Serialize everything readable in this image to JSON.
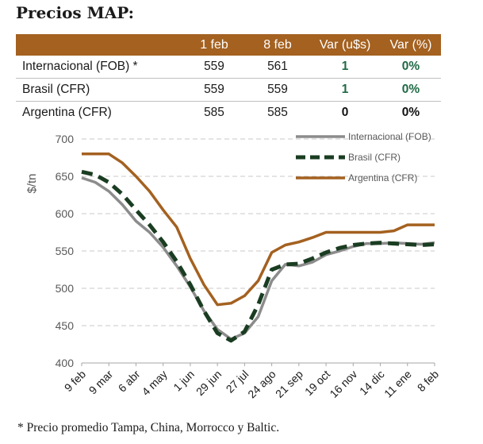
{
  "title": "Precios MAP:",
  "table": {
    "headers": [
      "",
      "1 feb",
      "8 feb",
      "Var (u$s)",
      "Var (%)"
    ],
    "rows": [
      {
        "name": "Internacional (FOB) *",
        "v1": "559",
        "v2": "561",
        "var_abs": "1",
        "var_pct": "0%",
        "color": "green"
      },
      {
        "name": "Brasil (CFR)",
        "v1": "559",
        "v2": "559",
        "var_abs": "1",
        "var_pct": "0%",
        "color": "green"
      },
      {
        "name": "Argentina (CFR)",
        "v1": "585",
        "v2": "585",
        "var_abs": "0",
        "var_pct": "0%",
        "color": "black"
      }
    ]
  },
  "footnote": "* Precio promedio Tampa, China, Morrocco y Baltic.",
  "chart_data": {
    "type": "line",
    "ylabel": "$/tn",
    "ylim": [
      400,
      700
    ],
    "yticks": [
      400,
      450,
      500,
      550,
      600,
      650,
      700
    ],
    "grid": true,
    "legend_position": "top-right",
    "x_tick_labels": [
      "9 feb",
      "9 mar",
      "6 abr",
      "4 may",
      "1 jun",
      "29 jun",
      "27 jul",
      "24 ago",
      "21 sep",
      "19 oct",
      "16 nov",
      "14 dic",
      "11 ene",
      "8 feb"
    ],
    "x": [
      0,
      0.5,
      1,
      1.5,
      2,
      2.5,
      3,
      3.5,
      4,
      4.5,
      5,
      5.5,
      6,
      6.5,
      7,
      7.5,
      8,
      8.5,
      9,
      9.5,
      10,
      10.5,
      11,
      11.5,
      12,
      12.5,
      13
    ],
    "series": [
      {
        "name": "Internacional (FOB)",
        "color": "#8c8c8c",
        "dash": "solid",
        "values": [
          648,
          642,
          630,
          612,
          590,
          575,
          555,
          530,
          502,
          470,
          445,
          432,
          440,
          462,
          510,
          532,
          530,
          535,
          545,
          550,
          556,
          560,
          560,
          561,
          560,
          559,
          561
        ]
      },
      {
        "name": "Brasil (CFR)",
        "color": "#1a3d22",
        "dash": "dashed",
        "values": [
          656,
          652,
          642,
          626,
          605,
          585,
          562,
          536,
          505,
          470,
          440,
          430,
          442,
          478,
          525,
          532,
          533,
          540,
          548,
          554,
          558,
          560,
          561,
          560,
          559,
          558,
          559
        ]
      },
      {
        "name": "Argentina (CFR)",
        "color": "#a46120",
        "dash": "solid",
        "values": [
          680,
          680,
          680,
          668,
          650,
          630,
          605,
          582,
          540,
          505,
          478,
          480,
          490,
          510,
          548,
          558,
          562,
          568,
          575,
          575,
          575,
          575,
          575,
          577,
          585,
          585,
          585
        ]
      }
    ]
  }
}
